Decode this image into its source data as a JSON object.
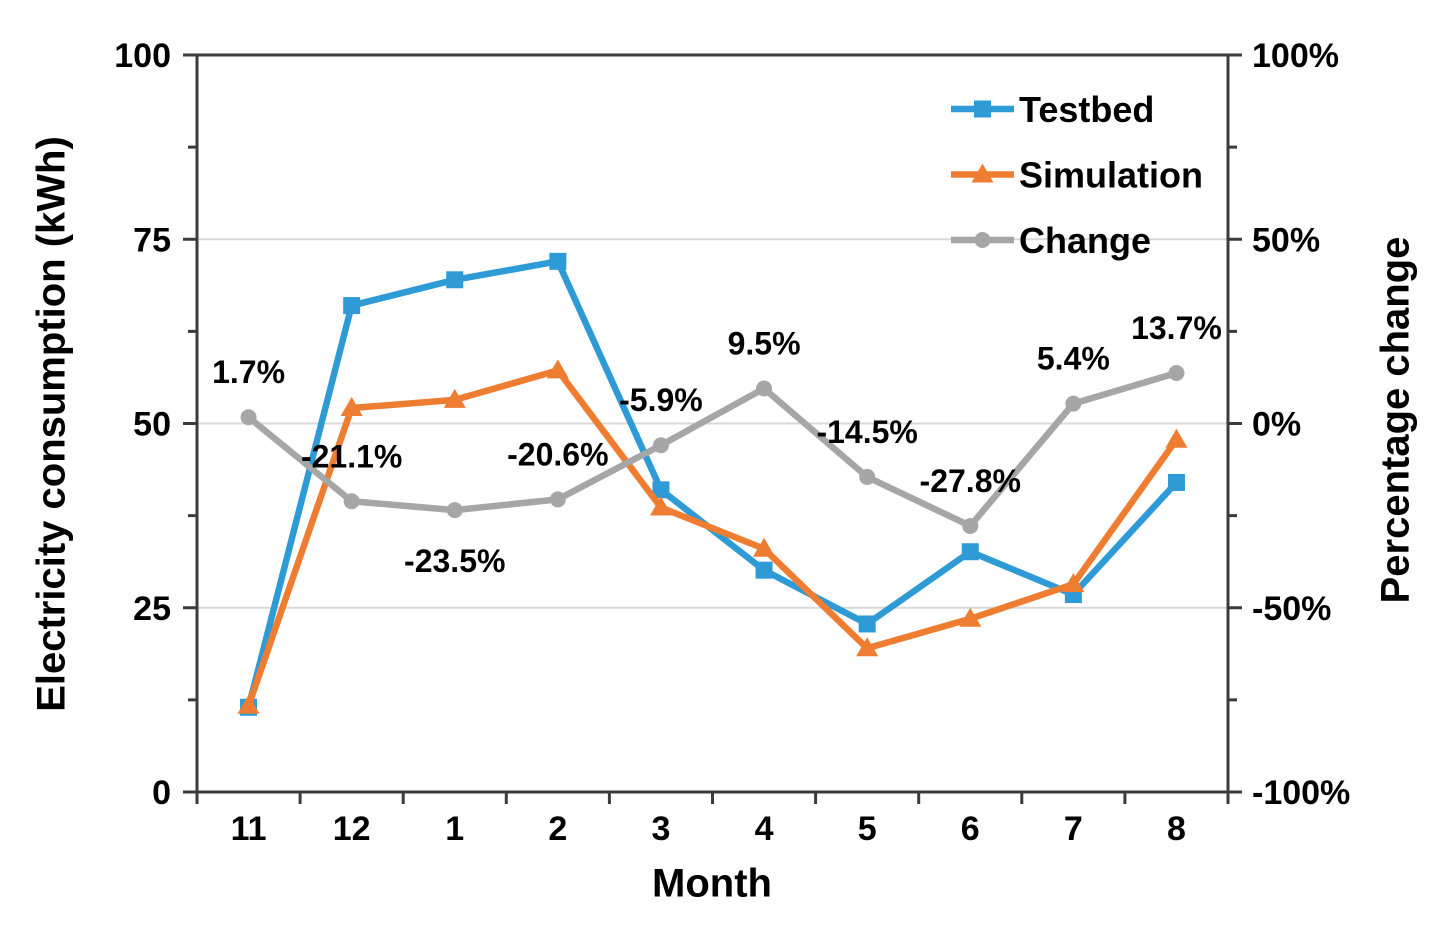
{
  "chart_data": {
    "type": "line",
    "title": "",
    "xlabel": "Month",
    "ylabel_left": "Electricity consumption (kWh)",
    "ylabel_right": "Percentage change",
    "categories": [
      "11",
      "12",
      "1",
      "2",
      "3",
      "4",
      "5",
      "6",
      "7",
      "8"
    ],
    "left_axis": {
      "min": 0,
      "max": 100,
      "tick_values": [
        0,
        25,
        50,
        75,
        100
      ],
      "tick_labels": [
        "0",
        "25",
        "50",
        "75",
        "100"
      ],
      "minor_tick_step": 12.5,
      "gridline_values": [
        25,
        50,
        75
      ]
    },
    "right_axis": {
      "min": -100,
      "max": 100,
      "tick_values": [
        -100,
        -50,
        0,
        50,
        100
      ],
      "tick_labels": [
        "-100%",
        "-50%",
        "0%",
        "50%",
        "100%"
      ],
      "minor_tick_step": 25
    },
    "legend": {
      "position": "top-right-inside",
      "items": [
        "Testbed",
        "Simulation",
        "Change"
      ]
    },
    "series": [
      {
        "name": "Testbed",
        "axis": "left",
        "marker": "square",
        "color": "#2E9BD6",
        "values": [
          11.5,
          66,
          69.5,
          72,
          41,
          30.1,
          22.8,
          32.6,
          26.8,
          42
        ]
      },
      {
        "name": "Simulation",
        "axis": "left",
        "marker": "triangle",
        "color": "#EE7D31",
        "values": [
          11.7,
          52.1,
          53.2,
          57.2,
          38.6,
          33,
          19.5,
          23.5,
          28.2,
          47.8
        ]
      },
      {
        "name": "Change",
        "axis": "right",
        "marker": "circle",
        "color": "#A6A6A6",
        "values": [
          1.7,
          -21.1,
          -23.5,
          -20.6,
          -5.9,
          9.5,
          -14.5,
          -27.8,
          5.4,
          13.7
        ],
        "point_labels": [
          "1.7%",
          "-21.1%",
          "-23.5%",
          "-20.6%",
          "-5.9%",
          "9.5%",
          "-14.5%",
          "-27.8%",
          "5.4%",
          "13.7%"
        ],
        "label_placement": [
          "above",
          "above",
          "below",
          "above",
          "above",
          "above",
          "above",
          "above",
          "above",
          "above"
        ]
      }
    ],
    "styles": {
      "grid_color": "#D9D9D9",
      "axis_color": "#3B3B3B",
      "text_color": "#000000",
      "background": "#FFFFFF"
    }
  }
}
